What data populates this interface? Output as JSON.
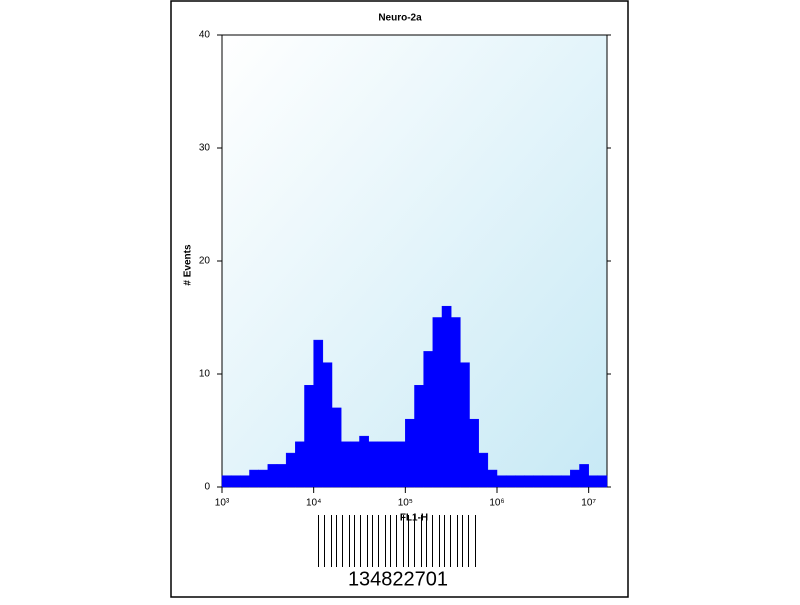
{
  "chart_data": {
    "type": "histogram",
    "title": "Neuro-2a",
    "x_label": "FL1-H",
    "y_label": "# Events",
    "x_scale": "log",
    "color": "#0000ff",
    "bins": [
      1000,
      1259,
      1585,
      1995,
      2512,
      3162,
      3981,
      5012,
      6310,
      7943,
      10000,
      12589,
      15849,
      19953,
      25119,
      31623,
      39811,
      50119,
      63096,
      79433,
      100000,
      125893,
      158489,
      199526,
      251189,
      316228,
      398107,
      501187,
      630957,
      794328,
      1000000,
      1258925,
      1584893,
      1995262,
      2511886,
      3162278,
      3981072,
      5011872,
      6309573,
      7943282,
      10000000,
      12589254,
      15848932
    ],
    "values": [
      1,
      1,
      1,
      1.5,
      1.5,
      2,
      2,
      3,
      4,
      9,
      13,
      11,
      7,
      4,
      4,
      4.5,
      4,
      4,
      4,
      4,
      6,
      9,
      12,
      15,
      16,
      15,
      11,
      6,
      3,
      1.5,
      1,
      1,
      1,
      1,
      1,
      1,
      1,
      1,
      1.5,
      2,
      1,
      1
    ],
    "xlim": [
      1000,
      15848932
    ],
    "xticks": [
      {
        "value": 1000,
        "label": "10³"
      },
      {
        "value": 10000,
        "label": "10⁴"
      },
      {
        "value": 100000,
        "label": "10⁵"
      },
      {
        "value": 1000000,
        "label": "10⁶"
      },
      {
        "value": 10000000,
        "label": "10⁷"
      }
    ],
    "ylim": [
      0,
      40
    ],
    "yticks": [
      0,
      10,
      20,
      30,
      40
    ]
  },
  "barcode": {
    "number": "134822701"
  }
}
